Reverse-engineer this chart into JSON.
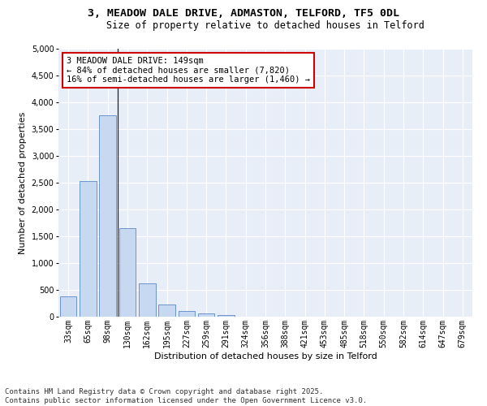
{
  "title_line1": "3, MEADOW DALE DRIVE, ADMASTON, TELFORD, TF5 0DL",
  "title_line2": "Size of property relative to detached houses in Telford",
  "xlabel": "Distribution of detached houses by size in Telford",
  "ylabel": "Number of detached properties",
  "categories": [
    "33sqm",
    "65sqm",
    "98sqm",
    "130sqm",
    "162sqm",
    "195sqm",
    "227sqm",
    "259sqm",
    "291sqm",
    "324sqm",
    "356sqm",
    "388sqm",
    "421sqm",
    "453sqm",
    "485sqm",
    "518sqm",
    "550sqm",
    "582sqm",
    "614sqm",
    "647sqm",
    "679sqm"
  ],
  "values": [
    380,
    2530,
    3760,
    1650,
    620,
    230,
    100,
    55,
    35,
    0,
    0,
    0,
    0,
    0,
    0,
    0,
    0,
    0,
    0,
    0,
    0
  ],
  "bar_color": "#c7d9f0",
  "bar_edge_color": "#5b87c5",
  "annotation_text": "3 MEADOW DALE DRIVE: 149sqm\n← 84% of detached houses are smaller (7,820)\n16% of semi-detached houses are larger (1,460) →",
  "annotation_box_color": "#ffffff",
  "annotation_box_edge_color": "#cc0000",
  "vline_x_idx": 3,
  "ylim": [
    0,
    5000
  ],
  "yticks": [
    0,
    500,
    1000,
    1500,
    2000,
    2500,
    3000,
    3500,
    4000,
    4500,
    5000
  ],
  "background_color": "#e8eef8",
  "grid_color": "#ffffff",
  "footer_text": "Contains HM Land Registry data © Crown copyright and database right 2025.\nContains public sector information licensed under the Open Government Licence v3.0.",
  "title_fontsize": 9.5,
  "subtitle_fontsize": 8.5,
  "axis_label_fontsize": 8,
  "tick_fontsize": 7,
  "annotation_fontsize": 7.5,
  "footer_fontsize": 6.5
}
